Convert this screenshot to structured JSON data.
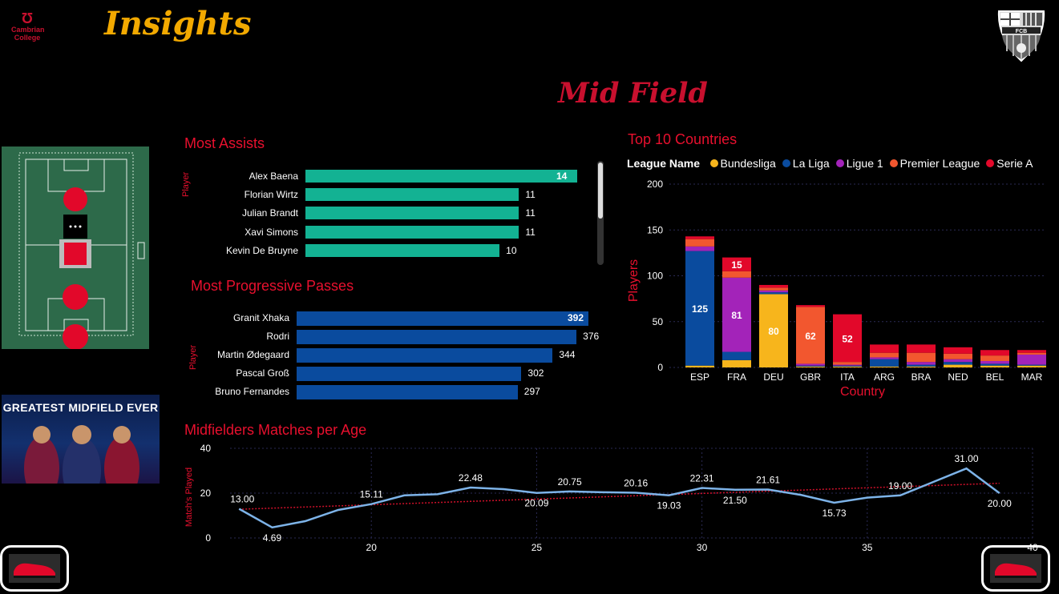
{
  "header": {
    "college_logo_line1": "Cambrian",
    "college_logo_line2": "College",
    "title": "Insights",
    "page_title": "Mid Field",
    "crest_text": "FCB"
  },
  "banner": {
    "title": "GREATEST MIDFIELD EVER"
  },
  "colors": {
    "teal": "#13b293",
    "blue": "#0a4b9e",
    "red": "#e8102e",
    "gold": "#f2a900",
    "bundesliga": "#f7b51c",
    "laliga": "#0a4b9e",
    "ligue1": "#a323b9",
    "premier": "#f2572f",
    "seriea": "#e2082a",
    "line": "#7db3e8"
  },
  "assists": {
    "title": "Most Assists",
    "y_label": "Player",
    "chart_data": {
      "type": "bar",
      "orientation": "horizontal",
      "categories": [
        "Alex Baena",
        "Florian Wirtz",
        "Julian Brandt",
        "Xavi Simons",
        "Kevin De Bruyne"
      ],
      "values": [
        14,
        11,
        11,
        11,
        10
      ]
    }
  },
  "passes": {
    "title": "Most Progressive Passes",
    "y_label": "Player",
    "chart_data": {
      "type": "bar",
      "orientation": "horizontal",
      "categories": [
        "Granit Xhaka",
        "Rodri",
        "Martin Ødegaard",
        "Pascal Groß",
        "Bruno Fernandes"
      ],
      "values": [
        392,
        376,
        344,
        302,
        297
      ]
    }
  },
  "countries": {
    "title": "Top 10 Countries",
    "legend_title": "League Name",
    "chart_data": {
      "type": "bar",
      "stacked": true,
      "xlabel": "Country",
      "ylabel": "Players",
      "ylim": [
        0,
        200
      ],
      "yticks": [
        0,
        50,
        100,
        150,
        200
      ],
      "categories": [
        "ESP",
        "FRA",
        "DEU",
        "GBR",
        "ITA",
        "ARG",
        "BRA",
        "NED",
        "BEL",
        "MAR"
      ],
      "series": [
        {
          "name": "Bundesliga",
          "values": [
            2,
            8,
            80,
            1,
            1,
            1,
            1,
            3,
            2,
            2
          ]
        },
        {
          "name": "La Liga",
          "values": [
            125,
            9,
            2,
            1,
            1,
            8,
            2,
            3,
            2,
            1
          ]
        },
        {
          "name": "Ligue 1",
          "values": [
            5,
            81,
            2,
            2,
            1,
            2,
            3,
            3,
            3,
            11
          ]
        },
        {
          "name": "Premier League",
          "values": [
            8,
            7,
            3,
            62,
            3,
            5,
            10,
            6,
            6,
            2
          ]
        },
        {
          "name": "Serie A",
          "values": [
            3,
            15,
            3,
            2,
            52,
            9,
            9,
            7,
            6,
            3
          ]
        }
      ],
      "data_labels": {
        "ESP": {
          "La Liga": "125"
        },
        "FRA": {
          "Ligue 1": "81",
          "Serie A": "15"
        },
        "DEU": {
          "Bundesliga": "80"
        },
        "GBR": {
          "Premier League": "62"
        },
        "ITA": {
          "Serie A": "52"
        }
      },
      "grid": true,
      "legend": "top"
    }
  },
  "matches": {
    "title": "Midfielders Matches per Age",
    "chart_data": {
      "type": "line",
      "ylabel": "Match's Played",
      "xlabel": "",
      "ylim": [
        0,
        40
      ],
      "xlim": [
        15,
        40
      ],
      "yticks": [
        0,
        20,
        40
      ],
      "xticks": [
        20,
        25,
        30,
        35,
        40
      ],
      "x": [
        16,
        17,
        18,
        19,
        20,
        21,
        22,
        23,
        24,
        25,
        26,
        27,
        28,
        29,
        30,
        31,
        32,
        33,
        34,
        35,
        36,
        37,
        38,
        39
      ],
      "y": [
        13.0,
        4.69,
        7.5,
        12.5,
        15.11,
        19.0,
        19.5,
        22.48,
        21.8,
        20.09,
        20.75,
        20.4,
        20.16,
        19.03,
        22.31,
        21.5,
        21.61,
        19.2,
        15.73,
        18.0,
        19.0,
        25.0,
        31.0,
        20.0
      ],
      "point_labels": [
        "13.00",
        "4.69",
        "",
        "",
        "15.11",
        "",
        "",
        "22.48",
        "",
        "20.09",
        "20.75",
        "",
        "20.16",
        "19.03",
        "22.31",
        "21.50",
        "21.61",
        "",
        "15.73",
        "",
        "19.00",
        "",
        "31.00",
        "20.00"
      ],
      "trend": [
        12.8,
        24.4
      ],
      "grid": true
    }
  }
}
